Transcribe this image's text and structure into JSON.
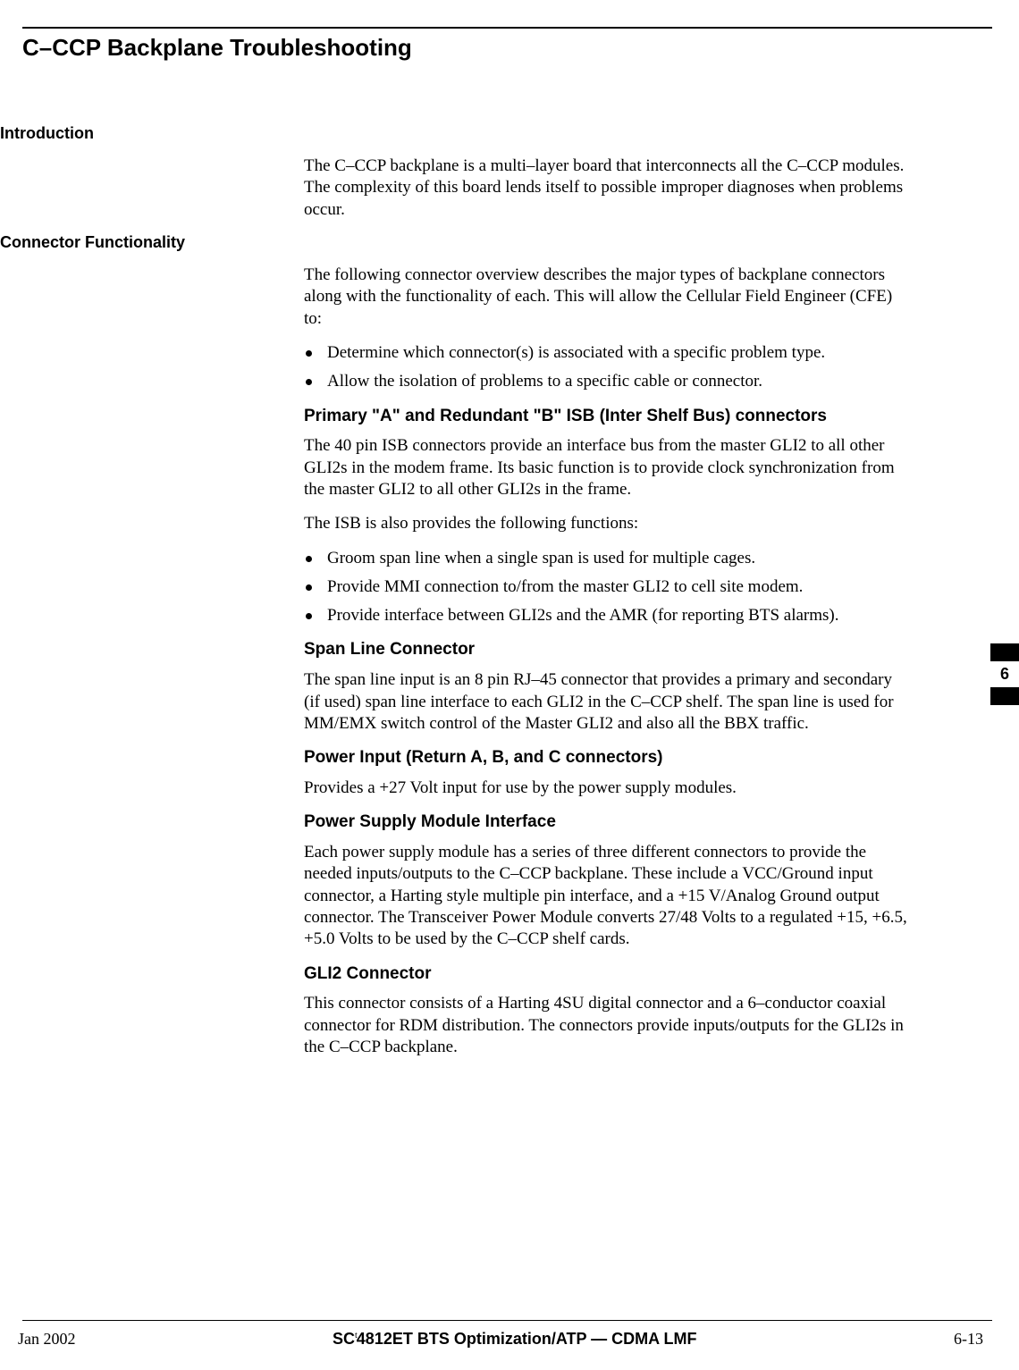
{
  "page_title": "C–CCP Backplane Troubleshooting",
  "sections": {
    "intro": {
      "label": "Introduction",
      "para1": "The C–CCP backplane is a multi–layer board that interconnects all the C–CCP modules.  The complexity of this board lends itself to possible improper diagnoses when problems occur."
    },
    "conn": {
      "label": "Connector Functionality",
      "para1": "The following connector overview describes the major types of backplane connectors along with the functionality of each. This will allow the Cellular Field Engineer (CFE) to:",
      "bullets1": {
        "b1": "Determine which connector(s) is associated with a specific problem type.",
        "b2": "Allow the isolation of problems to a specific cable or connector."
      },
      "sub1": {
        "heading": "Primary \"A\" and Redundant \"B\" ISB (Inter Shelf Bus) connectors",
        "para1": "The 40 pin ISB connectors provide an interface bus from the master GLI2 to all other GLI2s in the modem frame. Its basic function is to provide clock synchronization from the master GLI2 to all other GLI2s in the frame.",
        "para2": "The ISB is also provides the following functions:",
        "bullets": {
          "b1": "Groom span line when a single span is used for multiple cages.",
          "b2": "Provide MMI connection to/from the master GLI2 to cell site modem.",
          "b3": "Provide interface between GLI2s and the AMR (for reporting BTS alarms)."
        }
      },
      "sub2": {
        "heading": "Span Line Connector",
        "para1": "The span line input is an 8 pin RJ–45 connector that provides a primary and secondary (if used) span line interface to each GLI2 in the C–CCP shelf.  The span line is used for MM/EMX switch control of the Master GLI2 and also all the BBX traffic."
      },
      "sub3": {
        "heading": "Power Input (Return A, B, and C connectors)",
        "para1": "Provides a +27 Volt input for use by the power supply modules."
      },
      "sub4": {
        "heading": "Power Supply Module Interface",
        "para1": "Each power supply module has a series of three different connectors to provide the needed inputs/outputs to the C–CCP backplane. These include a VCC/Ground input connector, a Harting style multiple pin interface, and a +15 V/Analog Ground output connector. The Transceiver Power Module converts 27/48 Volts to a regulated +15, +6.5, +5.0 Volts to be used by the C–CCP shelf cards."
      },
      "sub5": {
        "heading": "GLI2 Connector",
        "para1": "This connector consists of a Harting 4SU digital connector and a 6–conductor  coaxial connector for RDM distribution. The connectors provide inputs/outputs for the GLI2s in the C–CCP backplane."
      }
    }
  },
  "chapter_tab": "6",
  "footer": {
    "left": "Jan 2002",
    "center_prefix": "SC",
    "center_tm": "t",
    "center_suffix": "4812ET BTS Optimization/ATP — CDMA LMF",
    "right": "6-13"
  }
}
